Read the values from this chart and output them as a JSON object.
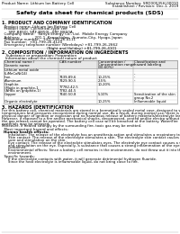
{
  "bg_color": "#ffffff",
  "header_left": "Product Name: Lithium Ion Battery Cell",
  "header_right_line1": "Substance Number: SRD00535H-00010",
  "header_right_line2": "Established: / Revision: Dec.1, 2019",
  "title": "Safety data sheet for chemical products (SDS)",
  "section1_header": "1. PRODUCT AND COMPANY IDENTIFICATION",
  "section1_lines": [
    "  Product name: Lithium Ion Battery Cell",
    "  Product code: Cylindrical-type cell",
    "      SRF-B850J, SRF-B850L, SRF-B850A",
    "  Company name:   Sanyo Energy Co., Ltd.  Mobile Energy Company",
    "  Address:             201-1  Kannokidan,  Sumoto-City, Hyogo, Japan",
    "  Telephone number:   +81-799-26-4111",
    "  Fax number:  +81-799-26-4120",
    "  Emergency telephone number (Weekdays) +81-799-26-2662",
    "                                        (Night and Holiday) +81-799-26-4101"
  ],
  "section2_header": "2. COMPOSITION / INFORMATION ON INGREDIENTS",
  "section2_sub": "  Substance or preparation: Preparation",
  "section2_sub2": "Information about the chemical nature of product",
  "table_col_headers_r1": [
    "Chemical name /",
    "CAS number",
    "Concentration /",
    "Classification and"
  ],
  "table_col_headers_r2": [
    "Generic name",
    "",
    "Concentration range",
    "hazard labeling"
  ],
  "table_col_headers_r3": [
    "",
    "",
    "(30-60%)",
    ""
  ],
  "table_rows": [
    [
      "Lithium metal oxide",
      "-",
      "",
      ""
    ],
    [
      "(LiMnCoNiO4)",
      "",
      "",
      "-"
    ],
    [
      "Iron",
      "7439-89-6",
      "10-25%",
      "-"
    ],
    [
      "Aluminum",
      "7429-90-5",
      "2-5%",
      "-"
    ],
    [
      "Graphite",
      "",
      "10-20%",
      ""
    ],
    [
      "(Made in graphite-1",
      "77782-42-5",
      "",
      ""
    ],
    [
      "(AHBs on graphite-1)",
      "7782-44-5",
      "",
      ""
    ],
    [
      "Copper",
      "7440-50-8",
      "5-10%",
      "Sensitization of the skin"
    ],
    [
      "",
      "",
      "",
      "group No.2"
    ],
    [
      "Organic electrolyte",
      "-",
      "10-25%",
      "Inflammable liquid"
    ]
  ],
  "section3_header": "3. HAZARDS IDENTIFICATION",
  "section3_lines": [
    "For this battery cell, chemical materials are stored in a hermetically sealed metal case, designed to withstand",
    "temperatures and pressures encountered during normal use. As a result, during normal use, there is no",
    "physical danger of ignition or explosion and no hazardous release of battery materials/electrolyte leakage.",
    "However, if exposed to a fire and/or mechanical shocks, decomposed, vented and/or electro without its normal use,",
    "the gas release cannot be operated. The battery cell case will be breached at the battery. Water/fire",
    "materials may be released.",
    "Moreover, if heated strongly by the surrounding fire, toxic gas may be emitted."
  ],
  "section3_bullet1": "  Most important hazard and effects:",
  "section3_human_header": "Human health effects:",
  "section3_human_lines": [
    "    Inhalation: The release of the electrolyte has an anesthesia action and stimulates a respiratory tract.",
    "    Skin contact: The release of the electrolyte stimulates a skin. The electrolyte skin contact causes a",
    "    sore and stimulation on the skin.",
    "    Eye contact: The release of the electrolyte stimulates eyes. The electrolyte eye contact causes a sore",
    "    and stimulation on the eye. Especially, a substance that causes a strong inflammation of the eyes is",
    "    contained.",
    "    Environmental effects: Since a battery cell remains in the environment, do not throw out it into the",
    "    environment."
  ],
  "section3_bullet2": "  Specific hazards:",
  "section3_specific_lines": [
    "    If the electrolyte contacts with water, it will generate detrimental hydrogen fluoride.",
    "    Since the heat electrolyte is inflammable liquid, do not bring close to fire."
  ]
}
